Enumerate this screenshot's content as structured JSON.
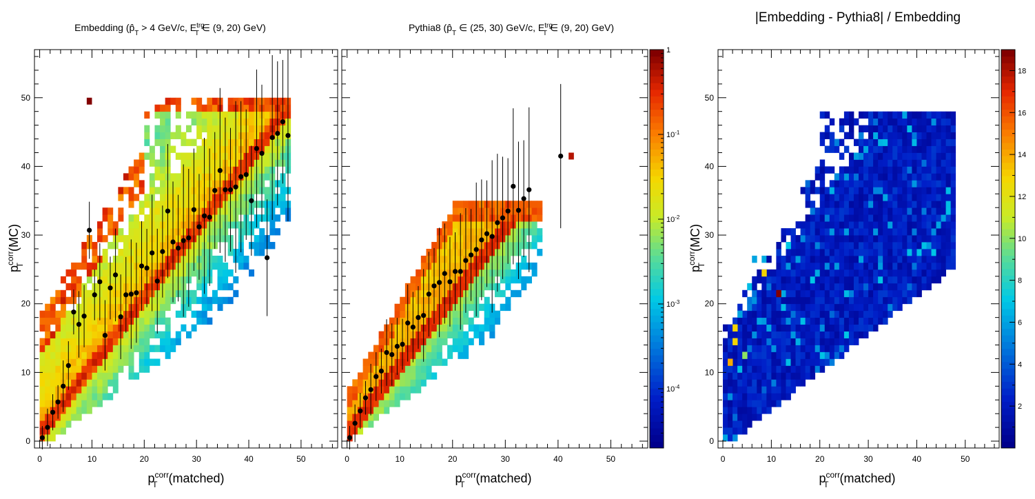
{
  "figure": {
    "panel_left_title": "Embedding (p̂T > 4 GeV/c, ET^trg ∈ (9, 20) GeV)",
    "panel_middle_title": "Pythia8 (p̂T ∈ (25, 30) GeV/c, ET^trg ∈ (9, 20) GeV)",
    "panel_right_title": "|Embedding - Pythia8| / Embedding",
    "x_label": "p_T^corr(matched)",
    "y_label": "p_T^corr(MC)"
  },
  "chart_data": [
    {
      "type": "heatmap",
      "title": "Embedding (p̂T > 4 GeV/c, ET^trg ∈ (9, 20) GeV)",
      "xlabel": "p_T^corr(matched)",
      "ylabel": "p_T^corr(MC)",
      "xlim": [
        -1,
        57
      ],
      "ylim": [
        -1,
        57
      ],
      "xticks": [
        0,
        10,
        20,
        30,
        40,
        50
      ],
      "yticks": [
        0,
        10,
        20,
        30,
        40,
        50
      ],
      "color_scale": "log",
      "profile_points": [
        [
          0.5,
          0.5
        ],
        [
          1.5,
          2
        ],
        [
          2.5,
          4.2
        ],
        [
          3.5,
          5.7
        ],
        [
          4.5,
          8
        ],
        [
          5.5,
          11
        ],
        [
          6.5,
          18.8
        ],
        [
          7.5,
          17
        ],
        [
          8.5,
          18.2
        ],
        [
          9.5,
          30.7
        ],
        [
          10.5,
          21.3
        ],
        [
          11.5,
          23.2
        ],
        [
          12.5,
          15.4
        ],
        [
          13.5,
          22.3
        ],
        [
          14.5,
          24.2
        ],
        [
          15.5,
          18.1
        ],
        [
          16.5,
          21.3
        ],
        [
          17.5,
          21.4
        ],
        [
          18.5,
          21.6
        ],
        [
          19.5,
          25.5
        ],
        [
          20.5,
          25.2
        ],
        [
          21.5,
          27.4
        ],
        [
          22.5,
          23.3
        ],
        [
          23.5,
          27.6
        ],
        [
          24.5,
          33.5
        ],
        [
          25.5,
          29
        ],
        [
          26.5,
          28.1
        ],
        [
          27.5,
          29.2
        ],
        [
          28.5,
          29.6
        ],
        [
          29.5,
          33.7
        ],
        [
          30.5,
          31.2
        ],
        [
          31.5,
          32.8
        ],
        [
          32.5,
          32.6
        ],
        [
          33.5,
          36.5
        ],
        [
          34.5,
          39.4
        ],
        [
          35.5,
          36.6
        ],
        [
          36.5,
          36.6
        ],
        [
          37.5,
          37
        ],
        [
          38.5,
          38.5
        ],
        [
          39.5,
          38.8
        ],
        [
          40.5,
          35
        ],
        [
          41.5,
          42.6
        ],
        [
          42.5,
          41.9
        ],
        [
          43.5,
          26.7
        ],
        [
          44.5,
          44.2
        ],
        [
          45.5,
          44.8
        ],
        [
          46.5,
          46.5
        ],
        [
          47.5,
          44.5
        ]
      ]
    },
    {
      "type": "heatmap",
      "title": "Pythia8 (p̂T ∈ (25, 30) GeV/c, ET^trg ∈ (9, 20) GeV)",
      "xlabel": "p_T^corr(matched)",
      "ylabel": "",
      "xlim": [
        -1,
        57
      ],
      "ylim": [
        -1,
        57
      ],
      "xticks": [
        0,
        10,
        20,
        30,
        40,
        50
      ],
      "color_scale": "log",
      "colorbar": {
        "range": [
          2e-05,
          1
        ],
        "ticks": [
          "1",
          "10^-1",
          "10^-2",
          "10^-3",
          "10^-4"
        ]
      },
      "profile_points": [
        [
          0.5,
          0.5
        ],
        [
          1.5,
          2.6
        ],
        [
          2.5,
          4.4
        ],
        [
          3.5,
          6.3
        ],
        [
          4.5,
          7.5
        ],
        [
          5.5,
          9.4
        ],
        [
          6.5,
          10.2
        ],
        [
          7.5,
          12.9
        ],
        [
          8.5,
          12.6
        ],
        [
          9.5,
          13.8
        ],
        [
          10.5,
          14.1
        ],
        [
          11.5,
          17.2
        ],
        [
          12.5,
          16.6
        ],
        [
          13.5,
          18
        ],
        [
          14.5,
          18.3
        ],
        [
          15.5,
          21.4
        ],
        [
          16.5,
          22.6
        ],
        [
          17.5,
          23.1
        ],
        [
          18.5,
          24.4
        ],
        [
          19.5,
          23.2
        ],
        [
          20.5,
          24.7
        ],
        [
          21.5,
          24.7
        ],
        [
          22.5,
          26.3
        ],
        [
          23.5,
          27.1
        ],
        [
          24.5,
          27.9
        ],
        [
          25.5,
          29.3
        ],
        [
          26.5,
          30.2
        ],
        [
          27.5,
          29.8
        ],
        [
          28.5,
          31.8
        ],
        [
          29.5,
          32.5
        ],
        [
          30.5,
          33.5
        ],
        [
          31.5,
          37.1
        ],
        [
          32.5,
          33.6
        ],
        [
          33.5,
          35.3
        ],
        [
          34.5,
          36.6
        ],
        [
          40.5,
          41.5
        ]
      ]
    },
    {
      "type": "heatmap",
      "title": "|Embedding - Pythia8| / Embedding",
      "xlabel": "p_T^corr(matched)",
      "ylabel": "p_T^corr(MC)",
      "xlim": [
        -1,
        57
      ],
      "ylim": [
        -1,
        57
      ],
      "xticks": [
        0,
        10,
        20,
        30,
        40,
        50
      ],
      "yticks": [
        0,
        10,
        20,
        30,
        40,
        50
      ],
      "color_scale": "linear",
      "colorbar": {
        "range": [
          0,
          19
        ],
        "ticks": [
          2,
          4,
          6,
          8,
          10,
          12,
          14,
          16,
          18
        ]
      },
      "highlight_cells": [
        [
          11,
          21,
          19
        ],
        [
          8,
          24,
          13
        ],
        [
          2,
          14,
          13
        ],
        [
          2,
          16,
          13
        ],
        [
          4,
          12,
          10
        ],
        [
          1,
          11,
          14
        ],
        [
          3,
          18,
          6
        ],
        [
          6,
          26,
          6
        ],
        [
          13,
          28,
          7
        ]
      ]
    }
  ]
}
